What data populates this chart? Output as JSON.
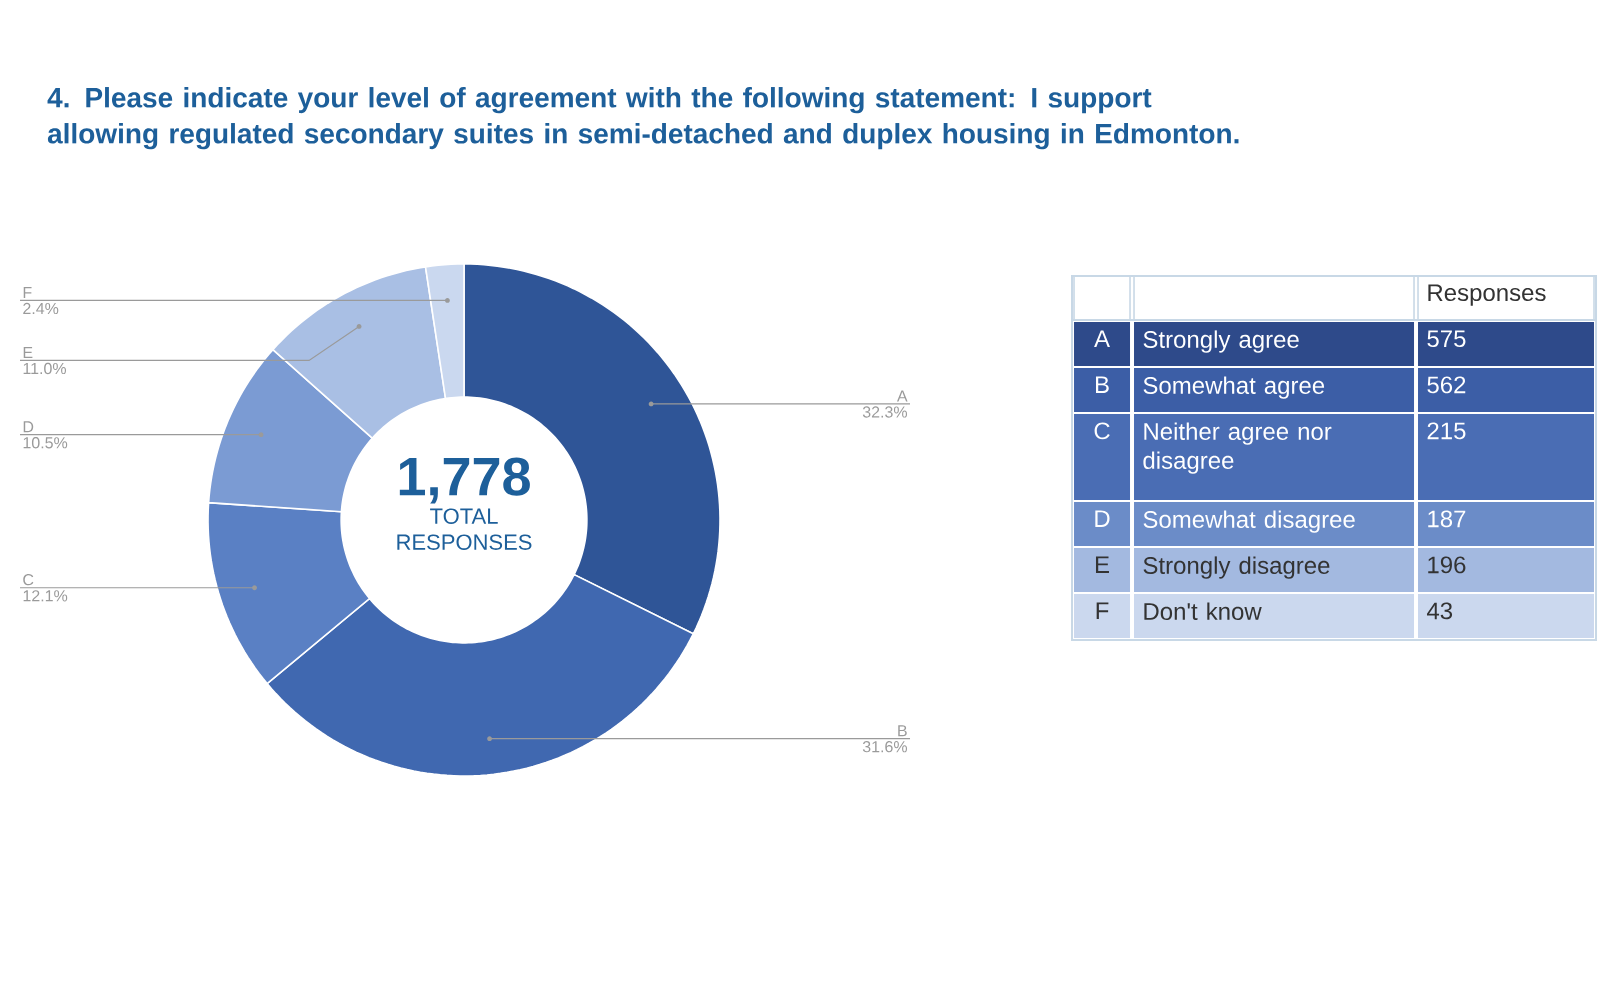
{
  "chart_data": [
    {
      "type": "donut",
      "title": "4. Please indicate your level of agreement with the following statement: I support allowing regulated secondary suites in semi-detached and duplex housing in Edmonton.",
      "categories": [
        "A",
        "B",
        "C",
        "D",
        "E",
        "F"
      ],
      "values": [
        32.3,
        31.6,
        12.1,
        10.5,
        11.0,
        2.4
      ],
      "value_labels": [
        "32.3%",
        "31.6%",
        "12.1%",
        "10.5%",
        "11.0%",
        "2.4%"
      ],
      "colors": [
        "#2f5597",
        "#4068b0",
        "#5a80c4",
        "#7b9bd3",
        "#a9bfe4",
        "#cad8ef"
      ],
      "annotations": [
        "1,778",
        "TOTAL RESPONSES"
      ]
    },
    {
      "type": "other",
      "legend_title": "Responses",
      "categories": [
        "A",
        "B",
        "C",
        "D",
        "E",
        "F"
      ],
      "annotations": [
        "Strongly agree",
        "Somewhat agree",
        "Neither agree nor disagree",
        "Somewhat disagree",
        "Strongly disagree",
        "Don't know"
      ],
      "values": [
        575,
        562,
        215,
        187,
        196,
        43
      ],
      "data_labels": true,
      "colors": [
        "#2e4a8a",
        "#3c5ea6",
        "#4a6db4",
        "#6b8cc8",
        "#a3b9e0",
        "#cbd8ee"
      ]
    }
  ]
}
